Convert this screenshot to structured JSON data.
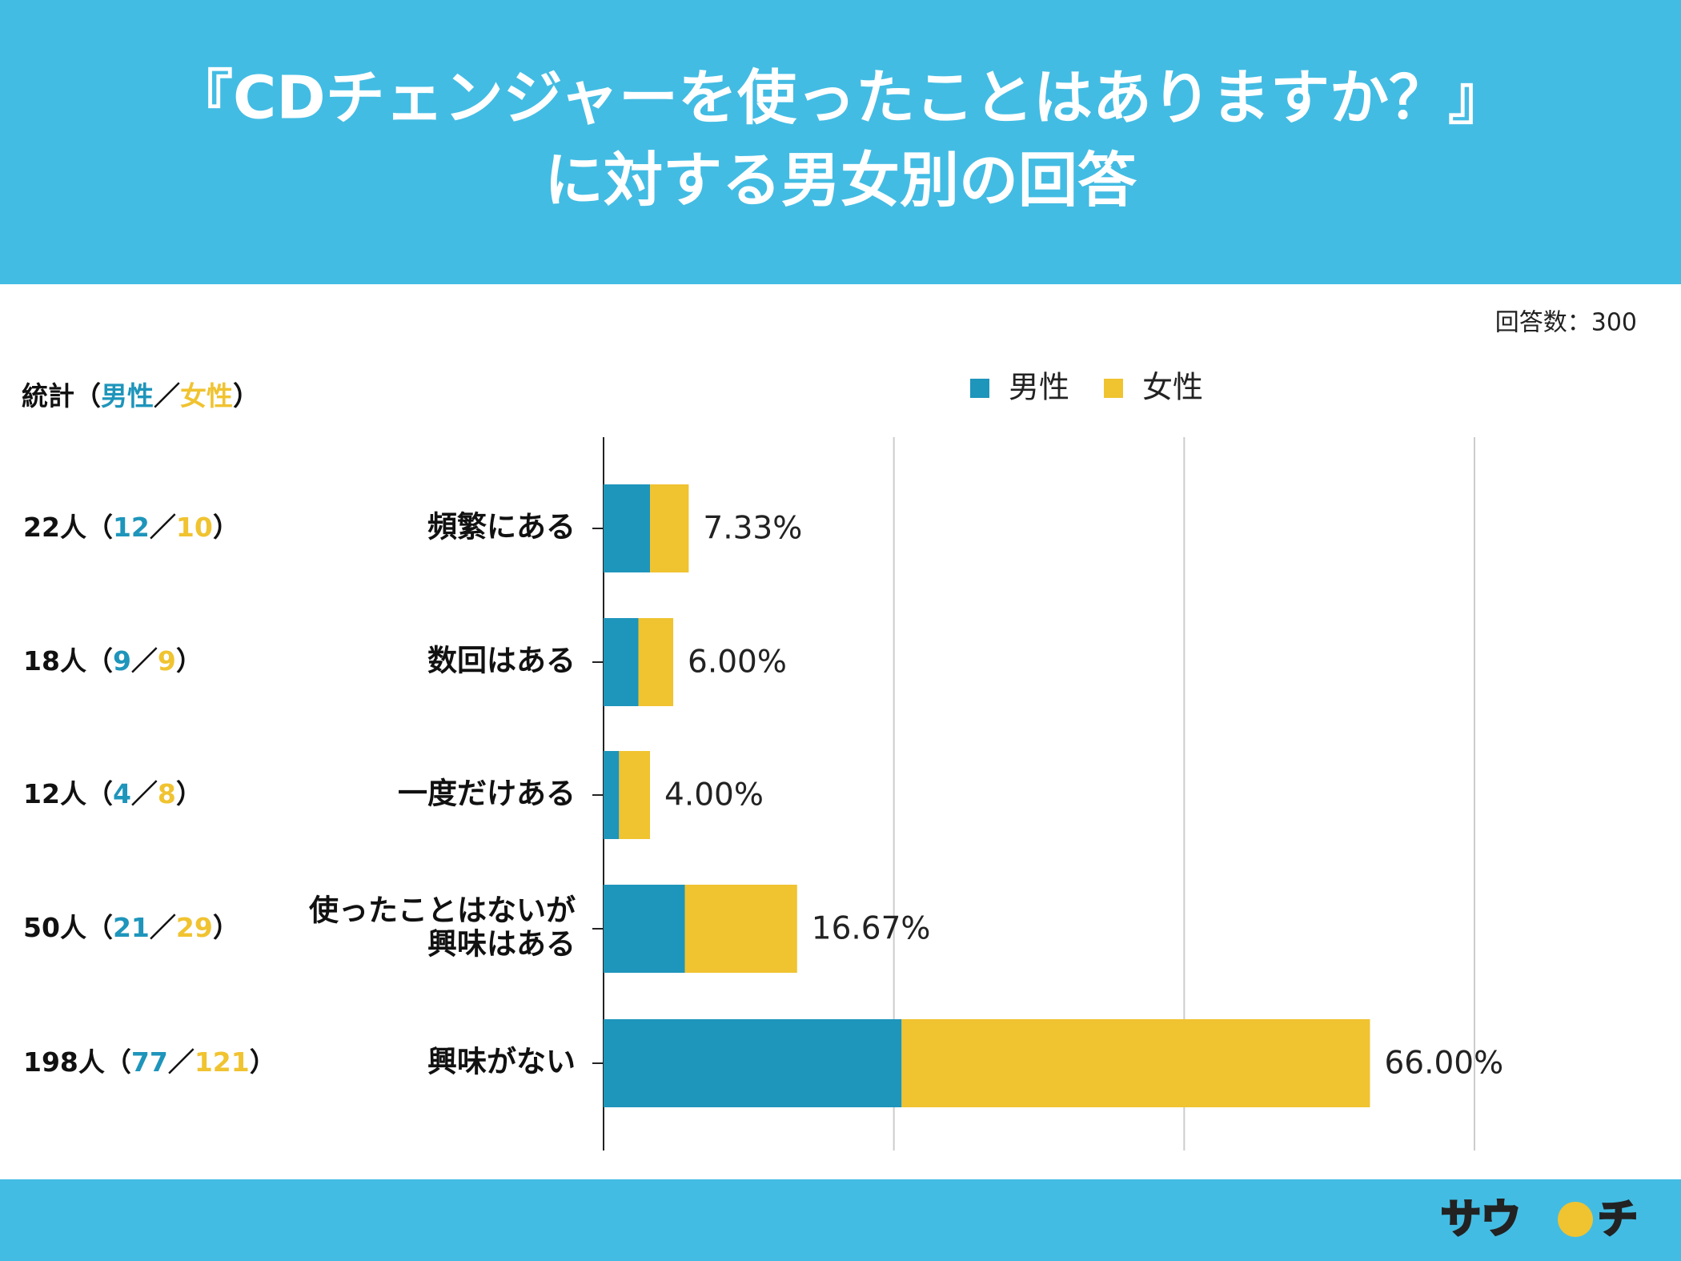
{
  "chart_data": {
    "type": "stacked-bar-horizontal",
    "title": [
      "『CDチェンジャーを使ったことはありますか？』",
      "に対する男女別の回答"
    ],
    "respondents": "回答数：300",
    "stats_title": "統計",
    "stats_format": {
      "unit": "人",
      "open": "（",
      "sep": "／",
      "close": "）"
    },
    "categories": [
      [
        "頻繁にある"
      ],
      [
        "数回はある"
      ],
      [
        "一度だけある"
      ],
      [
        "使ったことはないが",
        "興味はある"
      ],
      [
        "興味がない"
      ]
    ],
    "totals": [
      22,
      18,
      12,
      50,
      198
    ],
    "series": [
      {
        "name": "男性",
        "color": "#1e95bb",
        "values": [
          12,
          9,
          4,
          21,
          77
        ]
      },
      {
        "name": "女性",
        "color": "#f0c330",
        "values": [
          10,
          9,
          8,
          29,
          121
        ]
      }
    ],
    "percentages": [
      7.33,
      6.0,
      4.0,
      16.67,
      66.0
    ],
    "percentage_labels": [
      "7.33%",
      "6.00%",
      "4.00%",
      "16.67%",
      "66.00%"
    ],
    "xlim": [
      0,
      225
    ],
    "xticks": [
      0,
      75,
      150,
      225
    ],
    "grid": true,
    "logo": [
      "サウ",
      "チ"
    ]
  }
}
